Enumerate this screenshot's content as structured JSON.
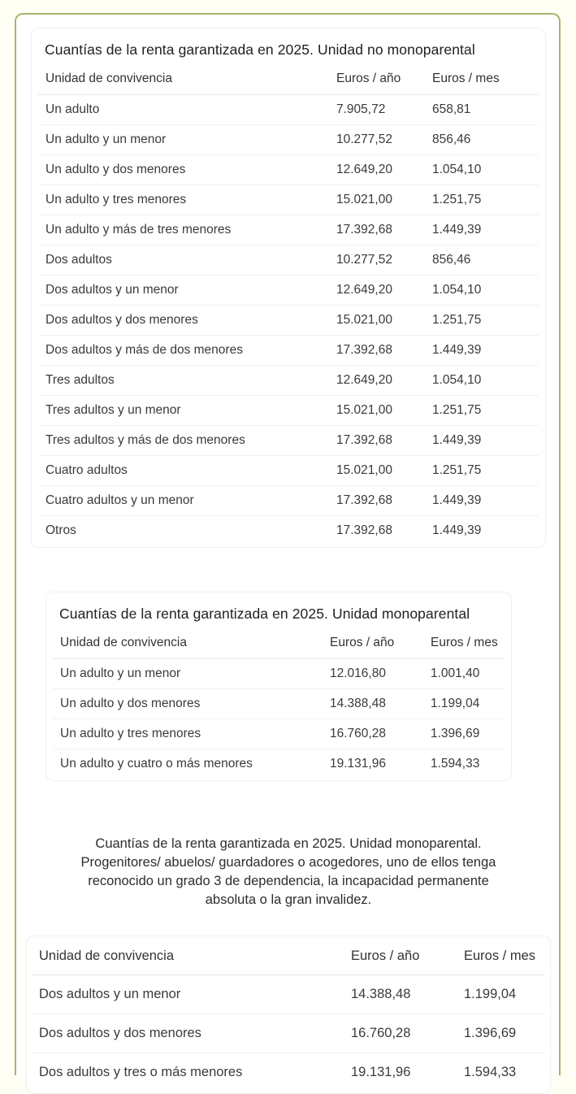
{
  "page": {
    "outer_background": "#fffef5",
    "card_border_color": "#a9b46c",
    "text_color": "#3a3a3a"
  },
  "tables": [
    {
      "title": "Cuantías de la renta garantizada en 2025. Unidad no monoparental",
      "columns": [
        "Unidad de convivencia",
        "Euros / año",
        "Euros / mes"
      ],
      "rows": [
        [
          "Un adulto",
          "7.905,72",
          "658,81"
        ],
        [
          "Un adulto y un menor",
          "10.277,52",
          "856,46"
        ],
        [
          "Un adulto y dos menores",
          "12.649,20",
          "1.054,10"
        ],
        [
          "Un adulto y tres menores",
          "15.021,00",
          "1.251,75"
        ],
        [
          "Un adulto y más de tres menores",
          "17.392,68",
          "1.449,39"
        ],
        [
          "Dos adultos",
          "10.277,52",
          "856,46"
        ],
        [
          "Dos adultos y un menor",
          "12.649,20",
          "1.054,10"
        ],
        [
          "Dos adultos y dos menores",
          "15.021,00",
          "1.251,75"
        ],
        [
          "Dos adultos y más de dos  menores",
          "17.392,68",
          "1.449,39"
        ],
        [
          "Tres adultos",
          "12.649,20",
          "1.054,10"
        ],
        [
          "Tres adultos y un menor",
          "15.021,00",
          "1.251,75"
        ],
        [
          "Tres adultos y más de dos menores",
          "17.392,68",
          "1.449,39"
        ],
        [
          "Cuatro adultos",
          "15.021,00",
          "1.251,75"
        ],
        [
          "Cuatro adultos y un menor",
          "17.392,68",
          "1.449,39"
        ],
        [
          "Otros",
          "17.392,68",
          "1.449,39"
        ]
      ]
    },
    {
      "title": "Cuantías de la renta garantizada en 2025. Unidad monoparental",
      "columns": [
        "Unidad de convivencia",
        "Euros / año",
        "Euros / mes"
      ],
      "rows": [
        [
          "Un adulto y un menor",
          "12.016,80",
          "1.001,40"
        ],
        [
          "Un adulto y dos menores",
          "14.388,48",
          "1.199,04"
        ],
        [
          "Un adulto y tres menores",
          "16.760,28",
          "1.396,69"
        ],
        [
          "Un adulto y cuatro o más menores",
          "19.131,96",
          "1.594,33"
        ]
      ]
    },
    {
      "title": "Cuantías de la renta garantizada en 2025. Unidad monoparental. Progenitores/ abuelos/ guardadores o acogedores, uno de ellos tenga reconocido un grado 3 de dependencia, la incapacidad permanente absoluta o la gran invalidez.",
      "columns": [
        "Unidad de convivencia",
        "Euros / año",
        "Euros / mes"
      ],
      "rows": [
        [
          "Dos adultos y un menor",
          "14.388,48",
          "1.199,04"
        ],
        [
          "Dos adultos y dos menores",
          "16.760,28",
          "1.396,69"
        ],
        [
          "Dos adultos y tres o más menores",
          "19.131,96",
          "1.594,33"
        ]
      ]
    }
  ]
}
